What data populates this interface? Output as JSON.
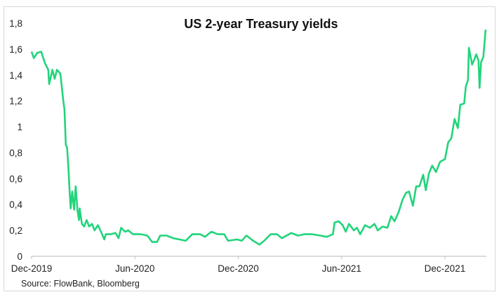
{
  "chart_data": {
    "type": "line",
    "title": "US 2-year Treasury yields",
    "source": "Source: FlowBank, Bloomberg",
    "xlabel": "",
    "ylabel": "",
    "x_units": "months since Dec-2019",
    "xlim": [
      0,
      26.4
    ],
    "ylim": [
      0,
      1.8
    ],
    "grid": false,
    "x_ticks": [
      {
        "value": 0,
        "label": "Dec-2019"
      },
      {
        "value": 6,
        "label": "Jun-2020"
      },
      {
        "value": 12,
        "label": "Dec-2020"
      },
      {
        "value": 18,
        "label": "Jun-2021"
      },
      {
        "value": 24,
        "label": "Dec-2021"
      }
    ],
    "y_ticks": [
      {
        "value": 0,
        "label": "0"
      },
      {
        "value": 0.2,
        "label": "0,2"
      },
      {
        "value": 0.4,
        "label": "0,4"
      },
      {
        "value": 0.6,
        "label": "0,6"
      },
      {
        "value": 0.8,
        "label": "0,8"
      },
      {
        "value": 1.0,
        "label": "1"
      },
      {
        "value": 1.2,
        "label": "1,2"
      },
      {
        "value": 1.4,
        "label": "1,4"
      },
      {
        "value": 1.6,
        "label": "1,6"
      },
      {
        "value": 1.8,
        "label": "1,8"
      }
    ],
    "series": [
      {
        "name": "US 2-year Treasury yield",
        "color": "#22d47b",
        "x": [
          0,
          0.13,
          0.32,
          0.56,
          0.78,
          0.97,
          1.02,
          1.21,
          1.34,
          1.47,
          1.67,
          1.84,
          1.91,
          1.99,
          2.06,
          2.14,
          2.21,
          2.27,
          2.36,
          2.47,
          2.56,
          2.66,
          2.75,
          2.79,
          2.92,
          3.05,
          3.2,
          3.34,
          3.51,
          3.66,
          3.85,
          4.03,
          4.22,
          4.31,
          4.59,
          4.87,
          5.05,
          5.2,
          5.42,
          5.61,
          5.89,
          6.35,
          6.72,
          7.0,
          7.28,
          7.47,
          7.84,
          8.21,
          8.95,
          9.33,
          9.79,
          10.07,
          10.44,
          10.81,
          11.18,
          11.41,
          11.93,
          12.2,
          12.48,
          12.86,
          13.23,
          13.51,
          13.88,
          14.25,
          14.53,
          15.08,
          15.46,
          15.83,
          16.29,
          16.76,
          17.13,
          17.5,
          17.59,
          17.83,
          18.06,
          18.24,
          18.43,
          18.71,
          18.89,
          19.08,
          19.36,
          19.64,
          19.91,
          20.1,
          20.38,
          20.66,
          20.88,
          21.07,
          21.31,
          21.55,
          21.74,
          21.92,
          22.14,
          22.33,
          22.52,
          22.74,
          22.89,
          23.07,
          23.26,
          23.48,
          23.72,
          24.0,
          24.19,
          24.37,
          24.56,
          24.75,
          24.89,
          25.12,
          25.21,
          25.34,
          25.39,
          25.58,
          25.71,
          25.82,
          25.95,
          26.01,
          26.1,
          26.23,
          26.36
        ],
        "y": [
          1.58,
          1.53,
          1.57,
          1.58,
          1.49,
          1.44,
          1.33,
          1.44,
          1.37,
          1.44,
          1.41,
          1.2,
          1.13,
          0.86,
          0.84,
          0.68,
          0.5,
          0.37,
          0.5,
          0.36,
          0.54,
          0.36,
          0.28,
          0.37,
          0.25,
          0.23,
          0.28,
          0.23,
          0.25,
          0.2,
          0.24,
          0.19,
          0.13,
          0.17,
          0.17,
          0.18,
          0.14,
          0.22,
          0.19,
          0.2,
          0.17,
          0.17,
          0.16,
          0.11,
          0.11,
          0.16,
          0.16,
          0.14,
          0.12,
          0.17,
          0.17,
          0.15,
          0.19,
          0.17,
          0.17,
          0.12,
          0.13,
          0.12,
          0.16,
          0.12,
          0.09,
          0.12,
          0.17,
          0.17,
          0.14,
          0.18,
          0.16,
          0.17,
          0.17,
          0.16,
          0.15,
          0.17,
          0.26,
          0.27,
          0.24,
          0.19,
          0.25,
          0.2,
          0.22,
          0.17,
          0.24,
          0.22,
          0.25,
          0.2,
          0.23,
          0.22,
          0.31,
          0.27,
          0.34,
          0.44,
          0.49,
          0.5,
          0.39,
          0.54,
          0.54,
          0.63,
          0.51,
          0.64,
          0.7,
          0.65,
          0.73,
          0.75,
          0.88,
          0.91,
          1.06,
          0.99,
          1.17,
          1.18,
          1.31,
          1.36,
          1.61,
          1.48,
          1.52,
          1.56,
          1.51,
          1.3,
          1.5,
          1.54,
          1.75
        ]
      }
    ]
  }
}
